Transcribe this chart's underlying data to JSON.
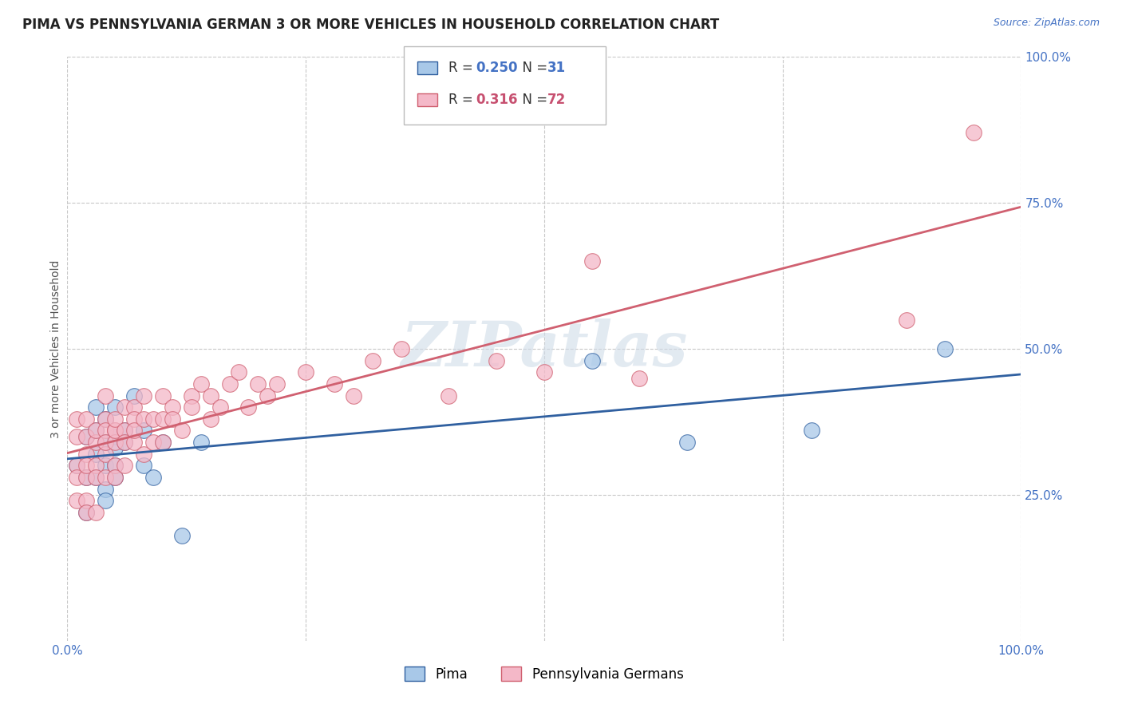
{
  "title": "PIMA VS PENNSYLVANIA GERMAN 3 OR MORE VEHICLES IN HOUSEHOLD CORRELATION CHART",
  "source_text": "Source: ZipAtlas.com",
  "ylabel": "3 or more Vehicles in Household",
  "legend_label1": "Pima",
  "legend_label2": "Pennsylvania Germans",
  "r1": 0.25,
  "n1": 31,
  "r2": 0.316,
  "n2": 72,
  "color1": "#a8c8e8",
  "color2": "#f4b8c8",
  "line_color1": "#3060a0",
  "line_color2": "#d06070",
  "background_color": "#ffffff",
  "watermark": "ZIPatlas",
  "xlim": [
    0.0,
    1.0
  ],
  "ylim": [
    0.0,
    1.0
  ],
  "xtick_positions": [
    0.0,
    0.25,
    0.5,
    0.75,
    1.0
  ],
  "xtick_labels": [
    "0.0%",
    "",
    "",
    "",
    "100.0%"
  ],
  "ytick_positions": [
    0.25,
    0.5,
    0.75,
    1.0
  ],
  "ytick_labels": [
    "25.0%",
    "50.0%",
    "75.0%",
    "100.0%"
  ],
  "pima_x": [
    0.01,
    0.02,
    0.02,
    0.02,
    0.03,
    0.03,
    0.03,
    0.03,
    0.04,
    0.04,
    0.04,
    0.04,
    0.04,
    0.05,
    0.05,
    0.05,
    0.05,
    0.05,
    0.06,
    0.06,
    0.07,
    0.08,
    0.08,
    0.09,
    0.1,
    0.12,
    0.14,
    0.55,
    0.65,
    0.78,
    0.92
  ],
  "pima_y": [
    0.3,
    0.35,
    0.28,
    0.22,
    0.32,
    0.4,
    0.36,
    0.28,
    0.34,
    0.3,
    0.26,
    0.38,
    0.24,
    0.35,
    0.33,
    0.3,
    0.28,
    0.4,
    0.36,
    0.34,
    0.42,
    0.3,
    0.36,
    0.28,
    0.34,
    0.18,
    0.34,
    0.48,
    0.34,
    0.36,
    0.5
  ],
  "penn_x": [
    0.01,
    0.01,
    0.01,
    0.01,
    0.01,
    0.02,
    0.02,
    0.02,
    0.02,
    0.02,
    0.02,
    0.02,
    0.03,
    0.03,
    0.03,
    0.03,
    0.03,
    0.04,
    0.04,
    0.04,
    0.04,
    0.04,
    0.04,
    0.05,
    0.05,
    0.05,
    0.05,
    0.05,
    0.05,
    0.06,
    0.06,
    0.06,
    0.06,
    0.07,
    0.07,
    0.07,
    0.07,
    0.08,
    0.08,
    0.08,
    0.09,
    0.09,
    0.1,
    0.1,
    0.1,
    0.11,
    0.11,
    0.12,
    0.13,
    0.13,
    0.14,
    0.15,
    0.15,
    0.16,
    0.17,
    0.18,
    0.19,
    0.2,
    0.21,
    0.22,
    0.25,
    0.28,
    0.3,
    0.32,
    0.35,
    0.4,
    0.45,
    0.5,
    0.55,
    0.6,
    0.88,
    0.95
  ],
  "penn_y": [
    0.3,
    0.28,
    0.24,
    0.35,
    0.38,
    0.32,
    0.28,
    0.24,
    0.35,
    0.3,
    0.22,
    0.38,
    0.34,
    0.3,
    0.28,
    0.36,
    0.22,
    0.38,
    0.36,
    0.32,
    0.28,
    0.34,
    0.42,
    0.36,
    0.34,
    0.3,
    0.28,
    0.36,
    0.38,
    0.4,
    0.36,
    0.34,
    0.3,
    0.4,
    0.38,
    0.34,
    0.36,
    0.42,
    0.38,
    0.32,
    0.38,
    0.34,
    0.42,
    0.38,
    0.34,
    0.4,
    0.38,
    0.36,
    0.42,
    0.4,
    0.44,
    0.42,
    0.38,
    0.4,
    0.44,
    0.46,
    0.4,
    0.44,
    0.42,
    0.44,
    0.46,
    0.44,
    0.42,
    0.48,
    0.5,
    0.42,
    0.48,
    0.46,
    0.65,
    0.45,
    0.55,
    0.87
  ],
  "grid_color": "#c8c8c8",
  "title_fontsize": 12,
  "axis_label_fontsize": 10,
  "tick_fontsize": 11
}
